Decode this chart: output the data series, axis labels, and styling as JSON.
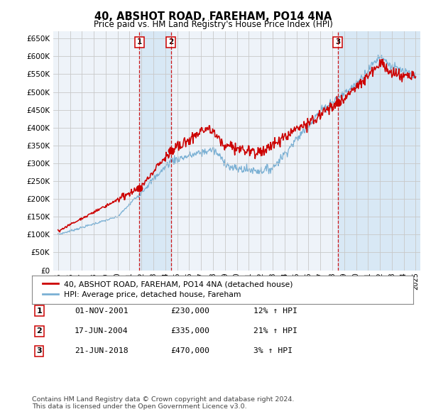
{
  "title": "40, ABSHOT ROAD, FAREHAM, PO14 4NA",
  "subtitle": "Price paid vs. HM Land Registry's House Price Index (HPI)",
  "ylabel_ticks": [
    "£0",
    "£50K",
    "£100K",
    "£150K",
    "£200K",
    "£250K",
    "£300K",
    "£350K",
    "£400K",
    "£450K",
    "£500K",
    "£550K",
    "£600K",
    "£650K"
  ],
  "ytick_values": [
    0,
    50000,
    100000,
    150000,
    200000,
    250000,
    300000,
    350000,
    400000,
    450000,
    500000,
    550000,
    600000,
    650000
  ],
  "ylim": [
    0,
    670000
  ],
  "sale_dates_year": [
    2001.833,
    2004.458,
    2018.458
  ],
  "sale_prices": [
    230000,
    335000,
    470000
  ],
  "sale_labels": [
    "1",
    "2",
    "3"
  ],
  "legend_line1": "40, ABSHOT ROAD, FAREHAM, PO14 4NA (detached house)",
  "legend_line2": "HPI: Average price, detached house, Fareham",
  "table_data": [
    [
      "1",
      "01-NOV-2001",
      "£230,000",
      "12% ↑ HPI"
    ],
    [
      "2",
      "17-JUN-2004",
      "£335,000",
      "21% ↑ HPI"
    ],
    [
      "3",
      "21-JUN-2018",
      "£470,000",
      "3% ↑ HPI"
    ]
  ],
  "footnote": "Contains HM Land Registry data © Crown copyright and database right 2024.\nThis data is licensed under the Open Government Licence v3.0.",
  "line_color_red": "#cc0000",
  "line_color_blue": "#7ab0d4",
  "shade_color": "#d8e8f5",
  "background_color": "#ffffff",
  "grid_color": "#c8c8c8",
  "plot_bg": "#eef3f9"
}
